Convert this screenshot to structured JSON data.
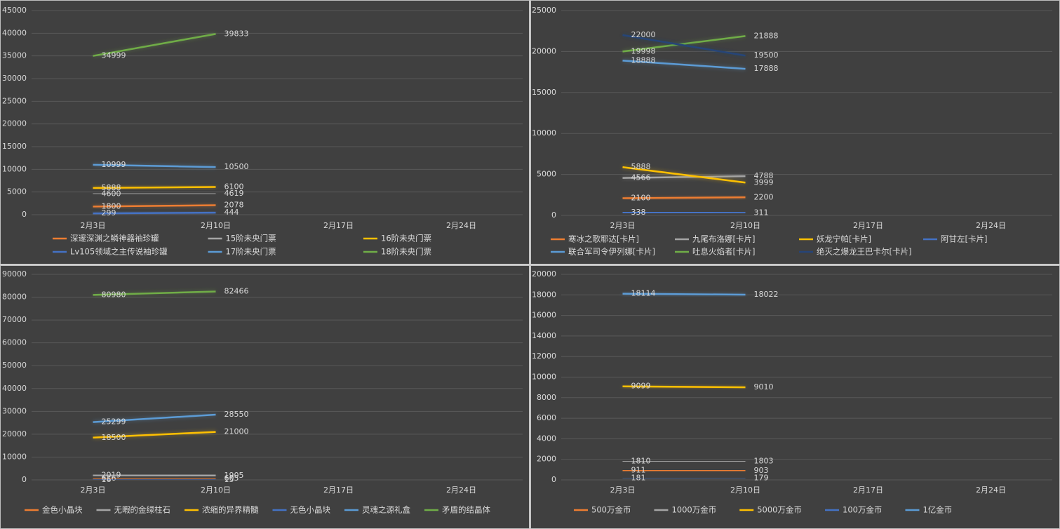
{
  "chart_data": [
    {
      "type": "line",
      "categories": [
        "2月3日",
        "2月10日",
        "2月17日",
        "2月24日"
      ],
      "ylim": [
        0,
        45000
      ],
      "yticks": [
        0,
        5000,
        10000,
        15000,
        20000,
        25000,
        30000,
        35000,
        40000,
        45000
      ],
      "grid": true,
      "series": [
        {
          "name": "深邃深渊之鳞神器袖珍罐",
          "color": "#ed7d31",
          "values": [
            1800,
            2078,
            null,
            null
          ]
        },
        {
          "name": "15阶未央门票",
          "color": "#a5a5a5",
          "values": [
            4600,
            4619,
            null,
            null
          ]
        },
        {
          "name": "16阶未央门票",
          "color": "#ffc000",
          "values": [
            5888,
            6100,
            null,
            null
          ]
        },
        {
          "name": "Lv105领域之主传说袖珍罐",
          "color": "#4472c4",
          "values": [
            299,
            444,
            null,
            null
          ]
        },
        {
          "name": "17阶未央门票",
          "color": "#5b9bd5",
          "values": [
            10999,
            10500,
            null,
            null
          ]
        },
        {
          "name": "18阶未央门票",
          "color": "#70ad47",
          "values": [
            34999,
            39833,
            null,
            null
          ]
        }
      ]
    },
    {
      "type": "line",
      "categories": [
        "2月3日",
        "2月10日",
        "2月17日",
        "2月24日"
      ],
      "ylim": [
        0,
        25000
      ],
      "yticks": [
        0,
        5000,
        10000,
        15000,
        20000,
        25000
      ],
      "grid": true,
      "series": [
        {
          "name": "寒冰之歌耶达[卡片]",
          "color": "#ed7d31",
          "values": [
            2100,
            2200,
            null,
            null
          ]
        },
        {
          "name": "九尾布洛娜[卡片]",
          "color": "#a5a5a5",
          "values": [
            4566,
            4788,
            null,
            null
          ]
        },
        {
          "name": "妖龙宁帕[卡片]",
          "color": "#ffc000",
          "values": [
            5888,
            3999,
            null,
            null
          ]
        },
        {
          "name": "阿甘左[卡片]",
          "color": "#4472c4",
          "values": [
            338,
            311,
            null,
            null
          ]
        },
        {
          "name": "联合军司令伊列娜[卡片]",
          "color": "#5b9bd5",
          "values": [
            18888,
            17888,
            null,
            null
          ]
        },
        {
          "name": "吐息火焰者[卡片]",
          "color": "#70ad47",
          "values": [
            19998,
            21888,
            null,
            null
          ]
        },
        {
          "name": "绝灭之爆龙王巴卡尔[卡片]",
          "color": "#264478",
          "values": [
            22000,
            19500,
            null,
            null
          ]
        }
      ]
    },
    {
      "type": "line",
      "categories": [
        "2月3日",
        "2月10日",
        "2月17日",
        "2月24日"
      ],
      "ylim": [
        0,
        90000
      ],
      "yticks": [
        0,
        10000,
        20000,
        30000,
        40000,
        50000,
        60000,
        70000,
        80000,
        90000
      ],
      "grid": true,
      "series": [
        {
          "name": "金色小晶块",
          "color": "#ed7d31",
          "values": [
            616,
            605,
            null,
            null
          ]
        },
        {
          "name": "无暇的金绿柱石",
          "color": "#a5a5a5",
          "values": [
            2019,
            1905,
            null,
            null
          ]
        },
        {
          "name": "浓缩的异界精髓",
          "color": "#ffc000",
          "values": [
            18500,
            21000,
            null,
            null
          ]
        },
        {
          "name": "无色小晶块",
          "color": "#4472c4",
          "values": [
            16,
            15,
            null,
            null
          ]
        },
        {
          "name": "灵魂之源礼盒",
          "color": "#5b9bd5",
          "values": [
            25299,
            28550,
            null,
            null
          ]
        },
        {
          "name": "矛盾的结晶体",
          "color": "#70ad47",
          "values": [
            80980,
            82466,
            null,
            null
          ]
        }
      ]
    },
    {
      "type": "line",
      "categories": [
        "2月3日",
        "2月10日",
        "2月17日",
        "2月24日"
      ],
      "ylim": [
        0,
        20000
      ],
      "yticks": [
        0,
        2000,
        4000,
        6000,
        8000,
        10000,
        12000,
        14000,
        16000,
        18000,
        20000
      ],
      "grid": true,
      "series": [
        {
          "name": "500万金币",
          "color": "#ed7d31",
          "values": [
            911,
            903,
            null,
            null
          ]
        },
        {
          "name": "1000万金币",
          "color": "#a5a5a5",
          "values": [
            1810,
            1803,
            null,
            null
          ]
        },
        {
          "name": "5000万金币",
          "color": "#ffc000",
          "values": [
            9099,
            9010,
            null,
            null
          ]
        },
        {
          "name": "100万金币",
          "color": "#4472c4",
          "values": [
            181,
            179,
            null,
            null
          ]
        },
        {
          "name": "1亿金币",
          "color": "#5b9bd5",
          "values": [
            18114,
            18022,
            null,
            null
          ]
        }
      ]
    }
  ]
}
